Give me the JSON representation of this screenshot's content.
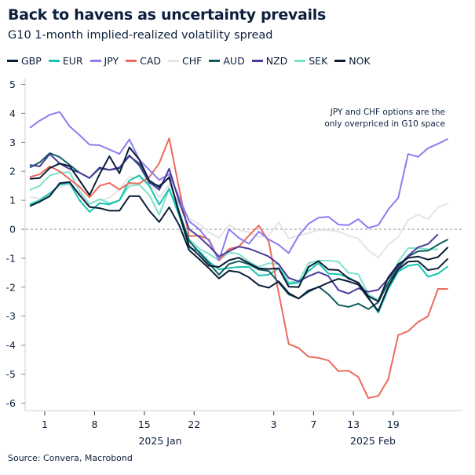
{
  "header": {
    "title": "Back to havens as uncertainty prevails",
    "subtitle": "G10 1-month implied-realized volatility spread"
  },
  "source": "Source: Convera, Macrobond",
  "chart_data": {
    "type": "line",
    "title": "Back to havens as uncertainty prevails",
    "subtitle": "G10 1-month implied-realized volatility spread",
    "ylim": [
      -6,
      5
    ],
    "yticks": [
      "5",
      "4",
      "3",
      "2",
      "1",
      "0",
      "-1",
      "-2",
      "-3",
      "-4",
      "-5",
      "-6"
    ],
    "zero_line": "dashed",
    "grid": false,
    "legend_position": "top",
    "annotation": [
      "JPY and CHF options are the",
      "only overpriced in G10 space"
    ],
    "x": [
      "2024-12-30",
      "2024-12-31",
      "2025-01-01",
      "2025-01-02",
      "2025-01-03",
      "2025-01-06",
      "2025-01-07",
      "2025-01-08",
      "2025-01-09",
      "2025-01-10",
      "2025-01-13",
      "2025-01-14",
      "2025-01-15",
      "2025-01-16",
      "2025-01-17",
      "2025-01-20",
      "2025-01-21",
      "2025-01-22",
      "2025-01-23",
      "2025-01-24",
      "2025-01-27",
      "2025-01-28",
      "2025-01-29",
      "2025-01-30",
      "2025-01-31",
      "2025-02-03",
      "2025-02-04",
      "2025-02-05",
      "2025-02-06",
      "2025-02-07",
      "2025-02-10",
      "2025-02-11",
      "2025-02-12",
      "2025-02-13",
      "2025-02-14",
      "2025-02-17",
      "2025-02-18",
      "2025-02-19",
      "2025-02-20",
      "2025-02-21",
      "2025-02-24",
      "2025-02-25",
      "2025-02-26"
    ],
    "xticks": [
      {
        "date": "2025-01-01",
        "label": "1"
      },
      {
        "date": "2025-01-08",
        "label": "8"
      },
      {
        "date": "2025-01-15",
        "label": "15"
      },
      {
        "date": "2025-01-22",
        "label": "22"
      },
      {
        "date": "2025-02-03",
        "label": "3"
      },
      {
        "date": "2025-02-07",
        "label": "7"
      },
      {
        "date": "2025-02-13",
        "label": "13"
      },
      {
        "date": "2025-02-19",
        "label": "19"
      }
    ],
    "month_labels": [
      "2025 Jan",
      "2025 Feb"
    ],
    "series": [
      {
        "name": "GBP",
        "color": "#0b1d38",
        "values": [
          1.74,
          1.77,
          2.11,
          2.27,
          2.18,
          1.68,
          1.18,
          1.9,
          2.52,
          1.93,
          2.83,
          2.4,
          1.68,
          1.45,
          1.8,
          0.55,
          -0.58,
          -0.9,
          -1.26,
          -1.3,
          -1.07,
          -0.98,
          -1.17,
          -1.35,
          -1.37,
          -1.35,
          -1.98,
          -2.0,
          -1.3,
          -1.1,
          -1.39,
          -1.41,
          -1.7,
          -1.84,
          -2.31,
          -2.49,
          -1.66,
          -1.21,
          -0.99,
          -0.94,
          -1.05,
          -0.96,
          -0.62
        ]
      },
      {
        "name": "EUR",
        "color": "#17c4b2",
        "values": [
          0.86,
          1.0,
          1.23,
          1.54,
          1.59,
          1.0,
          0.6,
          0.9,
          0.86,
          1.0,
          1.68,
          1.86,
          1.5,
          0.85,
          1.4,
          0.5,
          -0.63,
          -0.76,
          -1.12,
          -1.39,
          -1.34,
          -1.3,
          -1.3,
          -1.6,
          -1.57,
          -1.35,
          -1.89,
          -1.84,
          -1.44,
          -1.17,
          -1.53,
          -1.55,
          -1.66,
          -1.86,
          -2.34,
          -2.88,
          -2.07,
          -1.46,
          -1.26,
          -1.21,
          -1.64,
          -1.53,
          -1.28
        ]
      },
      {
        "name": "JPY",
        "color": "#8c7cf0",
        "values": [
          3.5,
          3.75,
          3.95,
          4.05,
          3.55,
          3.25,
          2.92,
          2.9,
          2.75,
          2.6,
          3.1,
          2.4,
          2.05,
          1.7,
          1.9,
          1.1,
          0.28,
          0.0,
          -0.4,
          -1.07,
          0.0,
          -0.3,
          -0.5,
          -0.08,
          -0.35,
          -0.54,
          -0.82,
          -0.22,
          0.19,
          0.4,
          0.43,
          0.16,
          0.14,
          0.35,
          0.05,
          0.14,
          0.68,
          1.08,
          2.6,
          2.5,
          2.8,
          2.95,
          3.12
        ]
      },
      {
        "name": "CAD",
        "color": "#ec6a5d",
        "values": [
          1.8,
          1.9,
          2.17,
          2.0,
          1.73,
          1.46,
          1.1,
          1.5,
          1.6,
          1.37,
          1.6,
          1.58,
          1.8,
          2.28,
          3.14,
          1.4,
          -0.24,
          -0.22,
          -0.35,
          -1.08,
          -0.68,
          -0.6,
          -0.22,
          0.13,
          -0.43,
          -2.2,
          -3.96,
          -4.1,
          -4.4,
          -4.44,
          -4.53,
          -4.9,
          -4.88,
          -5.1,
          -5.83,
          -5.75,
          -5.18,
          -3.65,
          -3.52,
          -3.2,
          -3.0,
          -2.06,
          -2.06
        ]
      },
      {
        "name": "CHF",
        "color": "#e4e4e4",
        "values": [
          1.12,
          1.05,
          1.27,
          1.45,
          1.54,
          1.23,
          0.9,
          1.0,
          1.09,
          1.36,
          1.81,
          1.77,
          1.59,
          1.1,
          1.54,
          0.84,
          0.37,
          0.19,
          -0.1,
          -0.3,
          0.14,
          -0.03,
          -0.1,
          -0.27,
          -0.22,
          0.24,
          -0.32,
          -0.22,
          -0.13,
          -0.03,
          -0.03,
          -0.08,
          -0.22,
          -0.32,
          -0.73,
          -0.98,
          -0.53,
          -0.27,
          0.32,
          0.51,
          0.35,
          0.76,
          0.89
        ]
      },
      {
        "name": "AUD",
        "color": "#0f5c5e",
        "values": [
          2.13,
          2.31,
          2.63,
          2.49,
          2.22,
          1.95,
          1.77,
          2.1,
          2.05,
          2.1,
          2.55,
          2.2,
          1.6,
          1.5,
          1.78,
          0.6,
          -0.4,
          -0.8,
          -1.17,
          -1.57,
          -1.2,
          -1.1,
          -1.21,
          -1.39,
          -1.44,
          -1.84,
          -2.25,
          -2.39,
          -2.16,
          -1.98,
          -2.25,
          -2.61,
          -2.68,
          -2.57,
          -2.76,
          -2.52,
          -1.84,
          -1.35,
          -0.94,
          -0.76,
          -0.74,
          -0.53,
          -0.35
        ]
      },
      {
        "name": "NZD",
        "color": "#4a3b9c",
        "values": [
          2.22,
          2.17,
          2.6,
          2.27,
          2.08,
          1.95,
          1.77,
          2.13,
          2.05,
          2.13,
          2.52,
          2.27,
          1.63,
          1.36,
          2.09,
          0.96,
          0.0,
          -0.26,
          -0.58,
          -0.94,
          -0.76,
          -0.6,
          -0.67,
          -0.8,
          -0.94,
          -1.21,
          -1.68,
          -1.8,
          -1.62,
          -1.48,
          -1.62,
          -2.1,
          -2.22,
          -2.04,
          -2.16,
          -2.09,
          -1.71,
          -1.28,
          -0.92,
          -0.62,
          -0.51,
          -0.17,
          null
        ]
      },
      {
        "name": "SEK",
        "color": "#7fe2cc",
        "values": [
          1.36,
          1.5,
          1.86,
          1.95,
          1.97,
          1.32,
          0.86,
          1.04,
          0.9,
          1.0,
          1.5,
          1.54,
          1.18,
          0.5,
          1.4,
          0.45,
          -0.35,
          -0.67,
          -0.85,
          -1.07,
          -0.8,
          -0.85,
          -1.12,
          -1.3,
          -1.17,
          -1.21,
          -1.84,
          -1.8,
          -1.17,
          -1.08,
          -1.08,
          -1.12,
          -1.5,
          -1.55,
          -2.25,
          -2.43,
          -1.89,
          -1.12,
          -0.65,
          -0.65,
          -0.69,
          -0.69,
          null
        ]
      },
      {
        "name": "NOK",
        "color": "#0b1d38",
        "values": [
          0.8,
          0.95,
          1.14,
          1.59,
          1.63,
          1.18,
          0.77,
          0.73,
          0.64,
          0.64,
          1.14,
          1.14,
          0.64,
          0.25,
          0.76,
          0.14,
          -0.72,
          -1.03,
          -1.35,
          -1.7,
          -1.43,
          -1.48,
          -1.66,
          -1.93,
          -2.02,
          -1.8,
          -2.2,
          -2.39,
          -2.11,
          -2.0,
          -1.84,
          -1.71,
          -1.8,
          -1.91,
          -2.38,
          -2.82,
          -1.98,
          -1.39,
          -1.12,
          -1.1,
          -1.41,
          -1.35,
          -1.01
        ]
      }
    ]
  }
}
